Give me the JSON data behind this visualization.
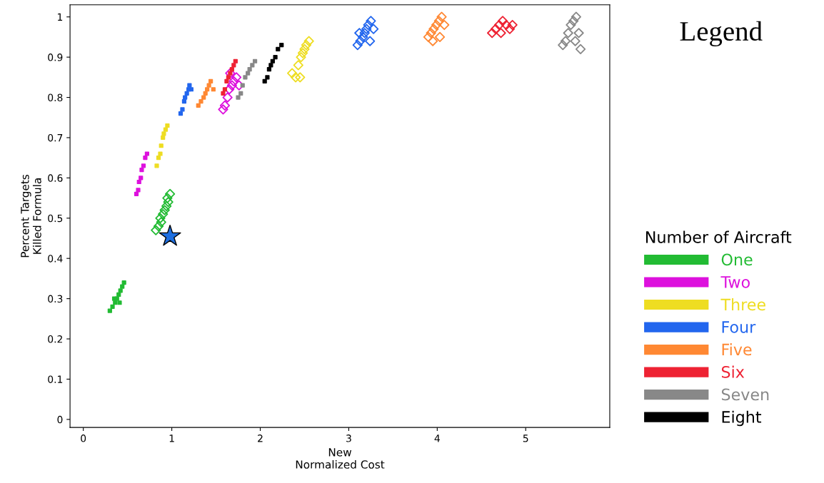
{
  "chart_data": {
    "type": "scatter",
    "xlabel": "New\nNormalized Cost",
    "ylabel": "Percent Targets\nKilled Formula",
    "xlim": [
      -0.15,
      5.95
    ],
    "ylim": [
      -0.02,
      1.03
    ],
    "xticks": [
      0,
      1,
      2,
      3,
      4,
      5
    ],
    "yticks": [
      0,
      0.1,
      0.2,
      0.3,
      0.4,
      0.5,
      0.6,
      0.7,
      0.8,
      0.9,
      1
    ],
    "grid": false,
    "legend": "right",
    "legend_title": "Number of Aircraft",
    "annotations": [
      "Legend"
    ],
    "series": [
      {
        "name": "One",
        "color": "#22bb33",
        "marker": "square",
        "x": [
          0.3,
          0.33,
          0.36,
          0.38,
          0.4,
          0.42,
          0.44,
          0.46,
          0.35,
          0.41
        ],
        "values": [
          0.27,
          0.28,
          0.29,
          0.3,
          0.31,
          0.32,
          0.33,
          0.34,
          0.3,
          0.29
        ]
      },
      {
        "color": "#22bb33",
        "marker": "diamond",
        "x": [
          0.82,
          0.85,
          0.87,
          0.9,
          0.92,
          0.94,
          0.96,
          0.98,
          0.88,
          0.95
        ],
        "values": [
          0.47,
          0.48,
          0.5,
          0.51,
          0.52,
          0.53,
          0.54,
          0.56,
          0.49,
          0.55
        ]
      },
      {
        "name": "Two",
        "color": "#dd11dd",
        "marker": "square",
        "x": [
          0.6,
          0.62,
          0.63,
          0.65,
          0.66,
          0.68,
          0.7,
          0.72
        ],
        "values": [
          0.56,
          0.57,
          0.59,
          0.6,
          0.62,
          0.63,
          0.65,
          0.66
        ]
      },
      {
        "color": "#dd11dd",
        "marker": "diamond",
        "x": [
          1.58,
          1.6,
          1.63,
          1.65,
          1.68,
          1.7,
          1.73,
          1.76,
          1.66
        ],
        "values": [
          0.77,
          0.78,
          0.8,
          0.82,
          0.83,
          0.84,
          0.85,
          0.83,
          0.86
        ]
      },
      {
        "name": "Three",
        "color": "#eedd22",
        "marker": "square",
        "x": [
          0.83,
          0.85,
          0.87,
          0.88,
          0.9,
          0.91,
          0.93,
          0.95
        ],
        "values": [
          0.63,
          0.65,
          0.66,
          0.68,
          0.7,
          0.71,
          0.72,
          0.73
        ]
      },
      {
        "color": "#eedd22",
        "marker": "diamond",
        "x": [
          2.36,
          2.4,
          2.43,
          2.46,
          2.48,
          2.5,
          2.52,
          2.55,
          2.45
        ],
        "values": [
          0.86,
          0.85,
          0.88,
          0.9,
          0.91,
          0.92,
          0.93,
          0.94,
          0.85
        ]
      },
      {
        "name": "Four",
        "color": "#2266ee",
        "marker": "square",
        "x": [
          1.1,
          1.12,
          1.14,
          1.15,
          1.17,
          1.19,
          1.2,
          1.22
        ],
        "values": [
          0.76,
          0.77,
          0.79,
          0.8,
          0.81,
          0.82,
          0.83,
          0.82
        ]
      },
      {
        "color": "#2266ee",
        "marker": "diamond",
        "x": [
          3.1,
          3.13,
          3.16,
          3.18,
          3.2,
          3.22,
          3.25,
          3.28,
          3.12,
          3.24
        ],
        "values": [
          0.93,
          0.94,
          0.95,
          0.96,
          0.97,
          0.98,
          0.99,
          0.97,
          0.96,
          0.94
        ]
      },
      {
        "name": "Five",
        "color": "#ff8833",
        "marker": "square",
        "x": [
          1.3,
          1.33,
          1.36,
          1.38,
          1.4,
          1.42,
          1.44,
          1.47
        ],
        "values": [
          0.78,
          0.79,
          0.8,
          0.81,
          0.82,
          0.83,
          0.84,
          0.82
        ]
      },
      {
        "color": "#ff8833",
        "marker": "diamond",
        "x": [
          3.9,
          3.93,
          3.96,
          3.99,
          4.02,
          4.05,
          4.08,
          3.95,
          4.03
        ],
        "values": [
          0.95,
          0.96,
          0.97,
          0.98,
          0.99,
          1.0,
          0.98,
          0.94,
          0.95
        ]
      },
      {
        "name": "Six",
        "color": "#ee2233",
        "marker": "square",
        "x": [
          1.58,
          1.6,
          1.62,
          1.64,
          1.66,
          1.68,
          1.7,
          1.72
        ],
        "values": [
          0.81,
          0.82,
          0.84,
          0.85,
          0.86,
          0.87,
          0.88,
          0.89
        ]
      },
      {
        "color": "#ee2233",
        "marker": "diamond",
        "x": [
          4.62,
          4.66,
          4.7,
          4.74,
          4.78,
          4.82,
          4.85,
          4.72
        ],
        "values": [
          0.96,
          0.97,
          0.98,
          0.99,
          0.98,
          0.97,
          0.98,
          0.96
        ]
      },
      {
        "name": "Seven",
        "color": "#888888",
        "marker": "square",
        "x": [
          1.75,
          1.78,
          1.8,
          1.83,
          1.86,
          1.88,
          1.91,
          1.94
        ],
        "values": [
          0.8,
          0.81,
          0.83,
          0.85,
          0.86,
          0.87,
          0.88,
          0.89
        ]
      },
      {
        "color": "#888888",
        "marker": "diamond",
        "x": [
          5.42,
          5.45,
          5.48,
          5.51,
          5.54,
          5.57,
          5.6,
          5.62,
          5.56
        ],
        "values": [
          0.93,
          0.94,
          0.96,
          0.98,
          0.99,
          1.0,
          0.96,
          0.92,
          0.94
        ]
      },
      {
        "name": "Eight",
        "color": "#000000",
        "marker": "square",
        "x": [
          2.05,
          2.08,
          2.1,
          2.12,
          2.14,
          2.17,
          2.2,
          2.24
        ],
        "values": [
          0.84,
          0.85,
          0.87,
          0.88,
          0.89,
          0.9,
          0.92,
          0.93
        ]
      },
      {
        "color": "#1f6fe0",
        "marker": "star",
        "x": [
          0.98
        ],
        "values": [
          0.455
        ]
      }
    ]
  }
}
